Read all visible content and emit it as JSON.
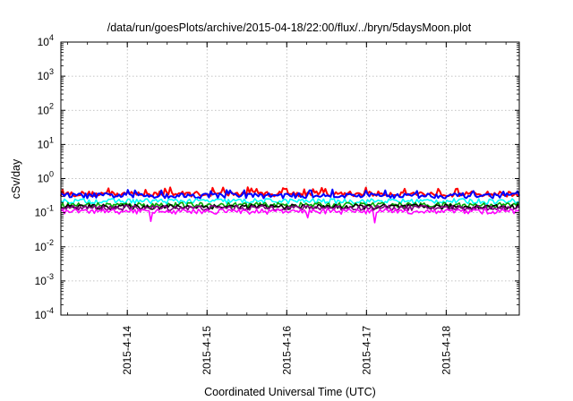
{
  "chart_data": {
    "type": "line",
    "title": "/data/run/goesPlots/archive/2015-04-18/22:00/flux/../bryn/5daysMoon.plot",
    "xlabel": "Coordinated Universal Time (UTC)",
    "ylabel": "cSv/day",
    "x_range_days": [
      "2015-04-13 04:00",
      "2015-04-18 22:00"
    ],
    "x_ticks": [
      "2015-4-14",
      "2015-4-15",
      "2015-4-16",
      "2015-4-17",
      "2015-4-18"
    ],
    "y_scale": "log",
    "ylim": [
      0.0001,
      10000
    ],
    "y_ticks": [
      {
        "base": "10",
        "exp": "4"
      },
      {
        "base": "10",
        "exp": "3"
      },
      {
        "base": "10",
        "exp": "2"
      },
      {
        "base": "10",
        "exp": "1"
      },
      {
        "base": "10",
        "exp": "0"
      },
      {
        "base": "10",
        "exp": "-1"
      },
      {
        "base": "10",
        "exp": "-2"
      },
      {
        "base": "10",
        "exp": "-3"
      },
      {
        "base": "10",
        "exp": "-4"
      }
    ],
    "grid": true,
    "series": [
      {
        "color": "#ff0000",
        "approx_value": 0.36
      },
      {
        "color": "#0000ff",
        "approx_value": 0.32
      },
      {
        "color": "#00ffff",
        "approx_value": 0.22
      },
      {
        "color": "#00aa00",
        "approx_value": 0.17
      },
      {
        "color": "#000000",
        "approx_value": 0.15
      },
      {
        "color": "#800080",
        "approx_value": 0.14
      },
      {
        "color": "#ff00ff",
        "approx_value": 0.11
      }
    ]
  }
}
